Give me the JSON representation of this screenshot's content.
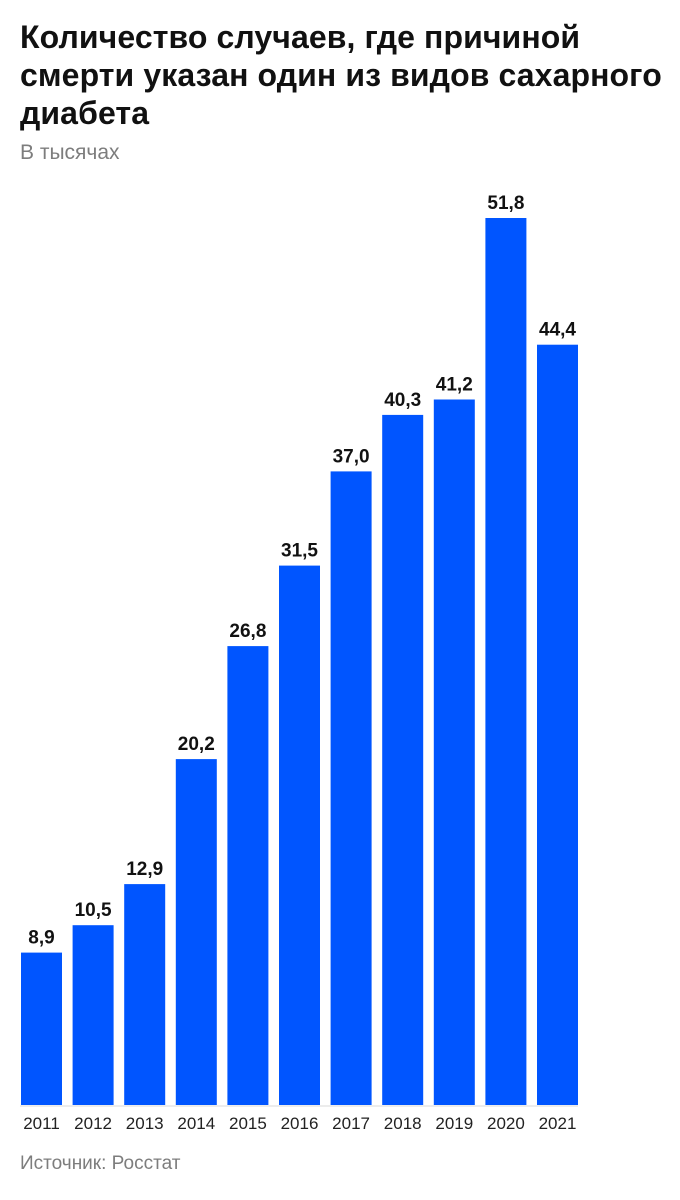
{
  "header": {
    "title": "Количество случаев, где причиной смерти указан один из видов сахарного диабета",
    "subtitle": "В тысячах"
  },
  "footer": {
    "source": "Источник: Росстат"
  },
  "colors": {
    "bar": "#0055ff",
    "title": "#111111",
    "muted": "#7d7d7d"
  },
  "chart_data": {
    "type": "bar",
    "title": "Количество случаев, где причиной смерти указан один из видов сахарного диабета",
    "subtitle": "В тысячах",
    "xlabel": "",
    "ylabel": "",
    "categories": [
      "2011",
      "2012",
      "2013",
      "2014",
      "2015",
      "2016",
      "2017",
      "2018",
      "2019",
      "2020",
      "2021"
    ],
    "values": [
      8.9,
      10.5,
      12.9,
      20.2,
      26.8,
      31.5,
      37.0,
      40.3,
      41.2,
      51.8,
      44.4
    ],
    "value_labels": [
      "8,9",
      "10,5",
      "12,9",
      "20,2",
      "26,8",
      "31,5",
      "37,0",
      "40,3",
      "41,2",
      "51,8",
      "44,4"
    ],
    "ylim": [
      0,
      51.8
    ],
    "grid": false,
    "legend": "none"
  }
}
